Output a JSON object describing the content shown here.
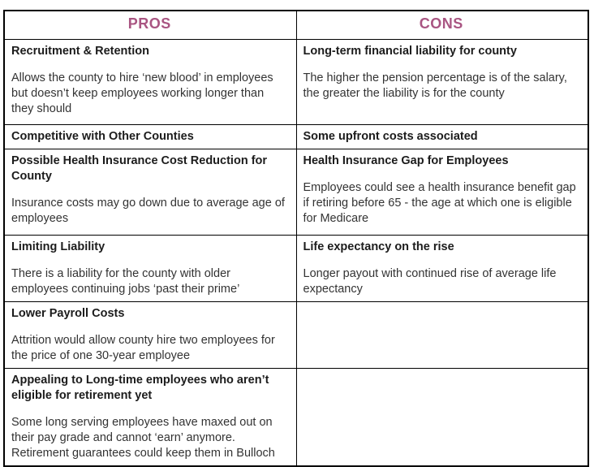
{
  "accent_color": "#a95582",
  "table": {
    "header": {
      "pros": "PROS",
      "cons": "CONS"
    },
    "rows": [
      {
        "pros": {
          "title": "Recruitment & Retention",
          "body": "Allows the county to hire ‘new blood’ in employees but doesn’t keep employees working longer than they should"
        },
        "cons": {
          "title": "Long-term financial liability for county",
          "body": "The higher the pension percentage is of the salary, the greater the liability is for the county"
        }
      },
      {
        "pros": {
          "title": "Competitive with Other Counties",
          "body": ""
        },
        "cons": {
          "title": "Some upfront costs associated",
          "body": ""
        }
      },
      {
        "pros": {
          "title": "Possible Health Insurance Cost Reduction for County",
          "body": "Insurance costs may go down due to average age of employees"
        },
        "cons": {
          "title": "Health Insurance Gap for Employees",
          "body": "Employees could see a health insurance benefit gap if retiring before 65 - the age at which one is eligible for Medicare"
        }
      },
      {
        "pros": {
          "title": "Limiting Liability",
          "body": "There is a liability for the county with older employees continuing jobs ‘past their prime’"
        },
        "cons": {
          "title": "Life expectancy on the rise",
          "body": "Longer payout with continued rise of average life expectancy"
        }
      },
      {
        "pros": {
          "title": "Lower Payroll Costs",
          "body": "Attrition would allow county hire two employees for the price of one 30-year employee"
        },
        "cons": {
          "title": "",
          "body": ""
        }
      },
      {
        "pros": {
          "title": "Appealing to Long-time employees who aren’t eligible for retirement yet",
          "body": "Some long serving employees have maxed out on their pay grade and cannot ‘earn’ anymore. Retirement guarantees could keep them in Bulloch"
        },
        "cons": {
          "title": "",
          "body": ""
        }
      }
    ]
  }
}
